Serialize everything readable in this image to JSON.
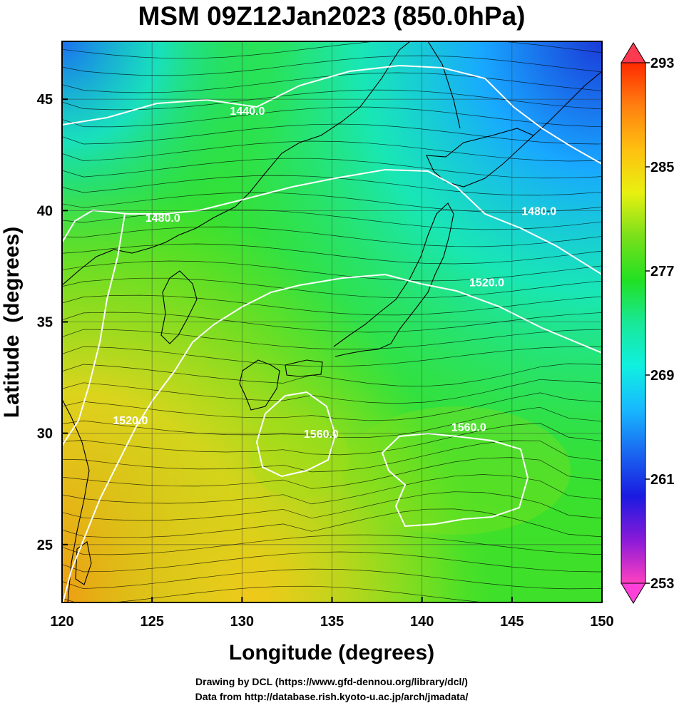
{
  "title": "MSM 09Z12Jan2023 (850.0hPa)",
  "credits": {
    "drawing": "Drawing by DCL (https://www.gfd-dennou.org/library/dcl/)",
    "data": "Data from http://database.rish.kyoto-u.ac.jp/arch/jmadata/"
  },
  "chart_data": {
    "type": "heatmap",
    "xlabel": "Longitude (degrees)",
    "ylabel": "Latitude  (degrees)",
    "xlim": [
      120,
      150
    ],
    "ylim": [
      22.4,
      47.6
    ],
    "x_ticks": [
      "120",
      "125",
      "130",
      "135",
      "140",
      "145",
      "150"
    ],
    "y_ticks": [
      "25",
      "30",
      "35",
      "40",
      "45"
    ],
    "grid": true,
    "colorbar": {
      "range": [
        253,
        293
      ],
      "ticks": [
        "293",
        "285",
        "277",
        "269",
        "261",
        "253"
      ],
      "colors": [
        "#ff40c0",
        "#8a1ad8",
        "#1a1ae0",
        "#1a66f0",
        "#18b8ff",
        "#10f0e0",
        "#18e898",
        "#22e022",
        "#7ae01a",
        "#e8f010",
        "#ffc010",
        "#ff8010",
        "#ff2a00"
      ]
    },
    "contours": [
      {
        "label": "1440.0",
        "lon": 130.3,
        "lat": 44.3
      },
      {
        "label": "1480.0",
        "lon": 125.6,
        "lat": 39.5
      },
      {
        "label": "1480.0",
        "lon": 146.5,
        "lat": 39.8
      },
      {
        "label": "1520.0",
        "lon": 143.6,
        "lat": 36.6
      },
      {
        "label": "1520.0",
        "lon": 123.8,
        "lat": 30.4
      },
      {
        "label": "1560.0",
        "lon": 134.4,
        "lat": 29.8
      },
      {
        "label": "1560.0",
        "lon": 142.6,
        "lat": 30.1
      }
    ]
  }
}
